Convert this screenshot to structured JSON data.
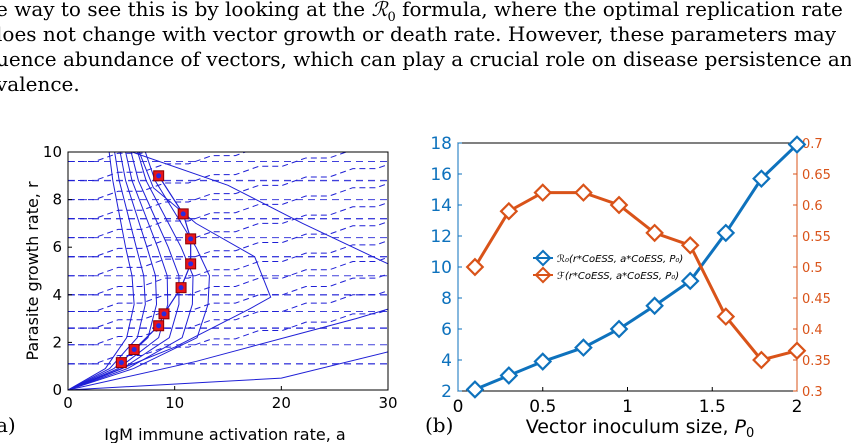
{
  "paragraph": {
    "line1_a": "e way to see this is by looking at the ",
    "line1_math": "ℛ",
    "line1_sub": "0",
    "line1_b": " formula, where the optimal replication rate",
    "line2": "loes not change with vector growth or death rate.  However, these parameters may",
    "line3": "uence abundance of vectors, which can play a crucial role on disease persistence and",
    "line4": "valence."
  },
  "panel_a": {
    "label": "a)",
    "chart_data": {
      "type": "contour",
      "xlabel": "IgM immune activation rate, a",
      "ylabel": "Parasite growth rate, r",
      "xlim": [
        0,
        30
      ],
      "ylim": [
        0,
        10
      ],
      "xticks": [
        "0",
        "10",
        "20",
        "30"
      ],
      "yticks": [
        "0",
        "2",
        "4",
        "6",
        "8",
        "10"
      ],
      "optimum_points": [
        [
          5.0,
          1.15
        ],
        [
          6.2,
          1.7
        ],
        [
          8.5,
          2.7
        ],
        [
          9.0,
          3.2
        ],
        [
          10.6,
          4.3
        ],
        [
          11.5,
          5.3
        ],
        [
          11.5,
          6.35
        ],
        [
          10.8,
          7.4
        ],
        [
          8.5,
          9.0
        ]
      ],
      "colors": {
        "contour": "#1f1fd6",
        "marker": "#e8141a"
      }
    }
  },
  "panel_b": {
    "label": "(b)",
    "chart_data": {
      "type": "line",
      "xlabel": "Vector inoculum size, ",
      "xlabel_math": "P",
      "xlabel_sub": "0",
      "x": [
        0.1,
        0.3,
        0.5,
        0.74,
        0.95,
        1.16,
        1.37,
        1.58,
        1.79,
        2.0
      ],
      "xlim": [
        0,
        2
      ],
      "xticks": [
        "0",
        "0.5",
        "1",
        "1.5",
        "2"
      ],
      "left_ylim": [
        2,
        18
      ],
      "left_yticks": [
        "2",
        "4",
        "6",
        "8",
        "10",
        "12",
        "14",
        "16",
        "18"
      ],
      "right_ylim": [
        0.3,
        0.7
      ],
      "right_yticks": [
        "0.3",
        "0.35",
        "0.4",
        "0.45",
        "0.5",
        "0.55",
        "0.6",
        "0.65",
        "0.7"
      ],
      "series": [
        {
          "name": "ℛ₀(r*CoESS, a*CoESS, P₀)",
          "axis": "left",
          "color": "#0e72bd",
          "values": [
            2.1,
            3.0,
            3.9,
            4.8,
            6.0,
            7.5,
            9.1,
            12.2,
            15.7,
            17.9
          ]
        },
        {
          "name": "ℱ(r*CoESS, a*CoESS, P₀)",
          "axis": "right",
          "color": "#d95319",
          "values": [
            0.5,
            0.59,
            0.62,
            0.62,
            0.6,
            0.555,
            0.535,
            0.42,
            0.35,
            0.365
          ]
        }
      ],
      "legend_placement": "center-left"
    }
  }
}
